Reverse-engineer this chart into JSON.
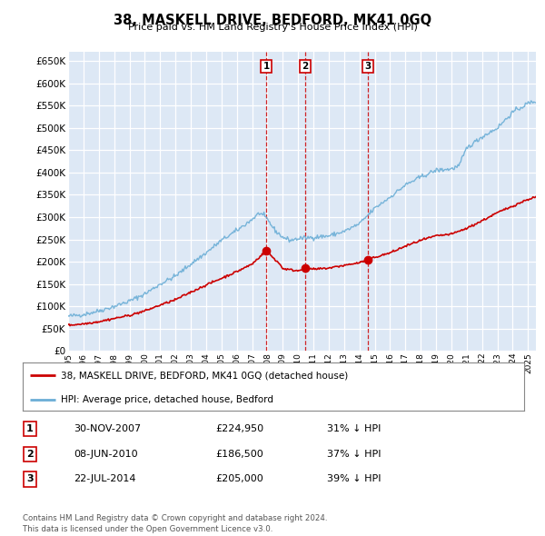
{
  "title": "38, MASKELL DRIVE, BEDFORD, MK41 0GQ",
  "subtitle": "Price paid vs. HM Land Registry's House Price Index (HPI)",
  "ylabel_ticks": [
    "£0",
    "£50K",
    "£100K",
    "£150K",
    "£200K",
    "£250K",
    "£300K",
    "£350K",
    "£400K",
    "£450K",
    "£500K",
    "£550K",
    "£600K",
    "£650K"
  ],
  "ytick_vals": [
    0,
    50000,
    100000,
    150000,
    200000,
    250000,
    300000,
    350000,
    400000,
    450000,
    500000,
    550000,
    600000,
    650000
  ],
  "ylim": [
    0,
    670000
  ],
  "background_color": "#dde8f5",
  "grid_color": "#ffffff",
  "hpi_color": "#6baed6",
  "price_color": "#cc0000",
  "vline_color": "#cc0000",
  "sale_markers": [
    {
      "date": 2007.917,
      "price": 224950,
      "label": "1"
    },
    {
      "date": 2010.44,
      "price": 186500,
      "label": "2"
    },
    {
      "date": 2014.56,
      "price": 205000,
      "label": "3"
    }
  ],
  "legend_entry1": "38, MASKELL DRIVE, BEDFORD, MK41 0GQ (detached house)",
  "legend_entry2": "HPI: Average price, detached house, Bedford",
  "table_rows": [
    {
      "num": "1",
      "date": "30-NOV-2007",
      "price": "£224,950",
      "hpi": "31% ↓ HPI"
    },
    {
      "num": "2",
      "date": "08-JUN-2010",
      "price": "£186,500",
      "hpi": "37% ↓ HPI"
    },
    {
      "num": "3",
      "date": "22-JUL-2014",
      "price": "£205,000",
      "hpi": "39% ↓ HPI"
    }
  ],
  "footnote": "Contains HM Land Registry data © Crown copyright and database right 2024.\nThis data is licensed under the Open Government Licence v3.0.",
  "xmin": 1995.0,
  "xmax": 2025.5
}
